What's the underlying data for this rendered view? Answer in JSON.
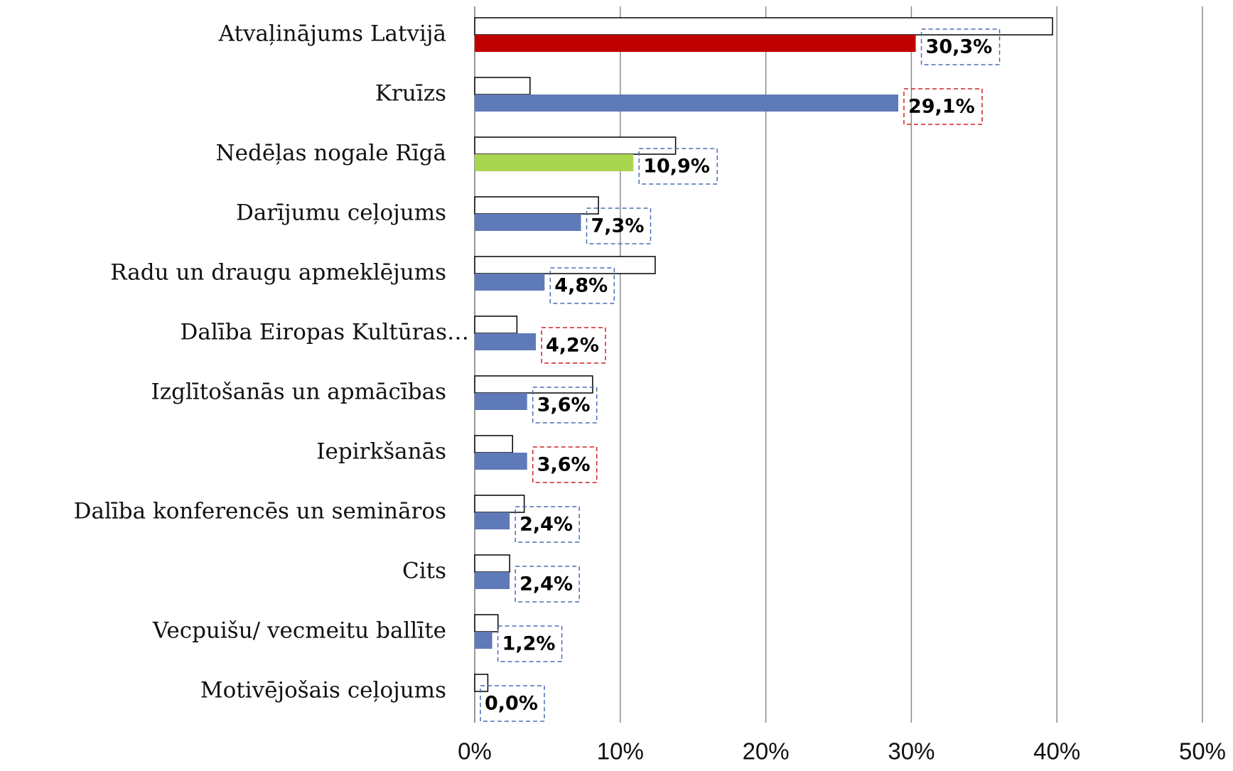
{
  "chart_data": {
    "type": "hbar",
    "categories": [
      "Atvaļinājums Latvijā",
      "Kruīzs",
      "Nedēļas nogale Rīgā",
      "Darījumu ceļojums",
      "Radu un draugu apmeklējums",
      "Dalība Eiropas Kultūras…",
      "Izglītošanās un apmācības",
      "Iepirkšanās",
      "Dalība konferencēs un semināros",
      "Cits",
      "Vecpuišu/ vecmeitu ballīte",
      "Motivējošais ceļojums"
    ],
    "series": [
      {
        "color": "#ffffff",
        "values": [
          39.7,
          3.8,
          13.8,
          8.5,
          12.4,
          2.9,
          8.1,
          2.6,
          3.4,
          2.4,
          1.6,
          0.9
        ]
      },
      {
        "color": "#5f7ab8",
        "bar_colors": [
          "#c00000",
          "#5f7ab8",
          "#a9d651",
          "#5f7ab8",
          "#5f7ab8",
          "#5f7ab8",
          "#5f7ab8",
          "#5f7ab8",
          "#5f7ab8",
          "#5f7ab8",
          "#5f7ab8",
          "#5f7ab8"
        ],
        "values": [
          30.3,
          29.1,
          10.9,
          7.3,
          4.8,
          4.2,
          3.6,
          3.6,
          2.4,
          2.4,
          1.2,
          0.0
        ],
        "value_labels": [
          "30,3%",
          "29,1%",
          "10,9%",
          "7,3%",
          "4,8%",
          "4,2%",
          "3,6%",
          "3,6%",
          "2,4%",
          "2,4%",
          "1,2%",
          "0,0%"
        ],
        "value_label_border_colors": [
          "#4a6fb0",
          "#d02020",
          "#4a6fb0",
          "#4a6fb0",
          "#4a6fb0",
          "#d02020",
          "#4a6fb0",
          "#d02020",
          "#4a6fb0",
          "#4a6fb0",
          "#4a6fb0",
          "#4a6fb0"
        ]
      }
    ],
    "xlim": [
      0,
      50
    ],
    "xticks": [
      {
        "value": 0,
        "label": "0%"
      },
      {
        "value": 10,
        "label": "10%"
      },
      {
        "value": 20,
        "label": "20%"
      },
      {
        "value": 30,
        "label": "30%"
      },
      {
        "value": 40,
        "label": "40%"
      },
      {
        "value": 50,
        "label": "50%"
      }
    ],
    "grid": true
  }
}
